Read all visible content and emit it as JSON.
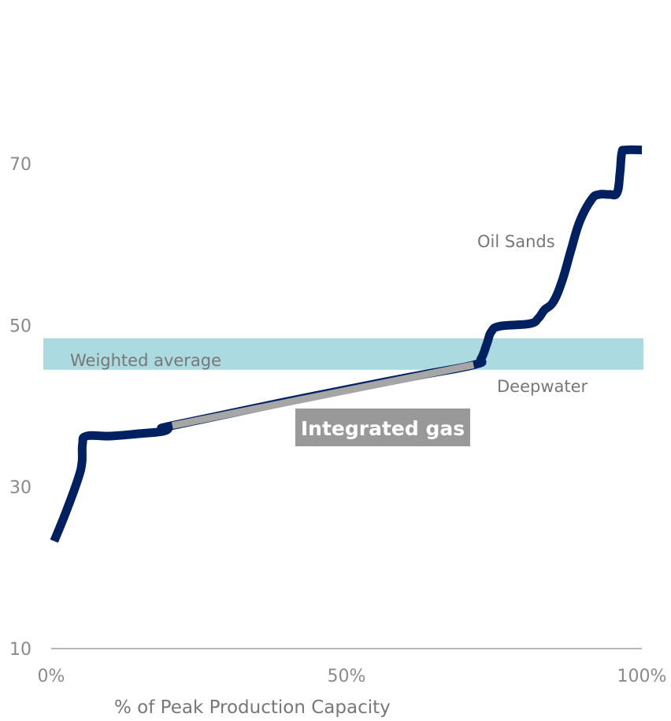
{
  "chart_data": {
    "type": "line",
    "xlabel": "% of Peak Production Capacity",
    "ylabel": "",
    "xlim": [
      0,
      100
    ],
    "ylim": [
      10,
      70
    ],
    "x_ticks": [
      {
        "value": 0,
        "label": "0%"
      },
      {
        "value": 50,
        "label": "50%"
      },
      {
        "value": 100,
        "label": "100%"
      }
    ],
    "y_ticks": [
      {
        "value": 10,
        "label": "10"
      },
      {
        "value": 30,
        "label": "30"
      },
      {
        "value": 50,
        "label": "50"
      },
      {
        "value": 70,
        "label": "70"
      }
    ],
    "weighted_average_band": {
      "label": "Weighted average",
      "low": 44.5,
      "high": 48.4,
      "color": "#acdae1"
    },
    "series": [
      {
        "color": "#002060",
        "points": [
          [
            0.5,
            23.3
          ],
          [
            2.5,
            26.9
          ],
          [
            4.5,
            30.9
          ],
          [
            5.2,
            33.0
          ],
          [
            5.3,
            35.3
          ],
          [
            6.0,
            36.3
          ],
          [
            10.0,
            36.3
          ],
          [
            15.0,
            36.6
          ],
          [
            19.0,
            36.9
          ],
          [
            20.0,
            37.4
          ],
          [
            20.5,
            37.6
          ],
          [
            40.0,
            40.6
          ],
          [
            60.0,
            43.5
          ],
          [
            71.5,
            45.1
          ],
          [
            72.8,
            45.9
          ],
          [
            73.8,
            47.8
          ],
          [
            74.5,
            49.2
          ],
          [
            76.0,
            49.9
          ],
          [
            81.0,
            50.2
          ],
          [
            82.5,
            50.9
          ],
          [
            83.5,
            51.9
          ],
          [
            85.0,
            52.9
          ],
          [
            86.5,
            55.5
          ],
          [
            88.0,
            59.3
          ],
          [
            89.5,
            62.9
          ],
          [
            91.5,
            65.6
          ],
          [
            92.8,
            66.2
          ],
          [
            94.5,
            66.2
          ],
          [
            95.8,
            66.4
          ],
          [
            96.3,
            68.9
          ],
          [
            96.6,
            71.3
          ],
          [
            97.2,
            71.7
          ],
          [
            100.0,
            71.7
          ]
        ]
      },
      {
        "color": "#a6a6a6",
        "points": [
          [
            20.5,
            37.6
          ],
          [
            71.5,
            45.1
          ]
        ]
      }
    ],
    "annotations": [
      {
        "text": "Oil Sands"
      },
      {
        "text": "Deepwater"
      },
      {
        "text": "Integrated gas",
        "bg": "#999999"
      }
    ]
  }
}
